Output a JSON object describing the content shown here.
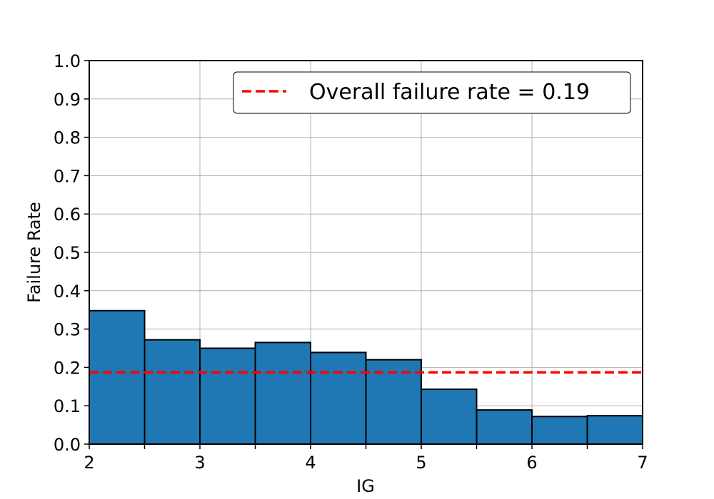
{
  "chart_data": {
    "type": "bar",
    "title": "",
    "xlabel": "IG",
    "ylabel": "Failure Rate",
    "bin_edges": [
      2,
      2.5,
      3,
      3.5,
      4,
      4.5,
      5,
      5.5,
      6,
      6.5,
      7
    ],
    "values": [
      0.348,
      0.272,
      0.25,
      0.265,
      0.239,
      0.22,
      0.143,
      0.089,
      0.072,
      0.074
    ],
    "xlim": [
      2,
      7
    ],
    "ylim": [
      0,
      1.0
    ],
    "xticks": [
      "2",
      "3",
      "4",
      "5",
      "6",
      "7"
    ],
    "yticks": [
      "0.0",
      "0.1",
      "0.2",
      "0.3",
      "0.4",
      "0.5",
      "0.6",
      "0.7",
      "0.8",
      "0.9",
      "1.0"
    ],
    "reference_line": {
      "value": 0.187,
      "label": "Overall failure rate = 0.19",
      "color": "#ff0000",
      "style": "dashed"
    },
    "bar_color": "#1f77b4",
    "edge_color": "#000000",
    "grid": true,
    "legend_position": "top-right"
  }
}
